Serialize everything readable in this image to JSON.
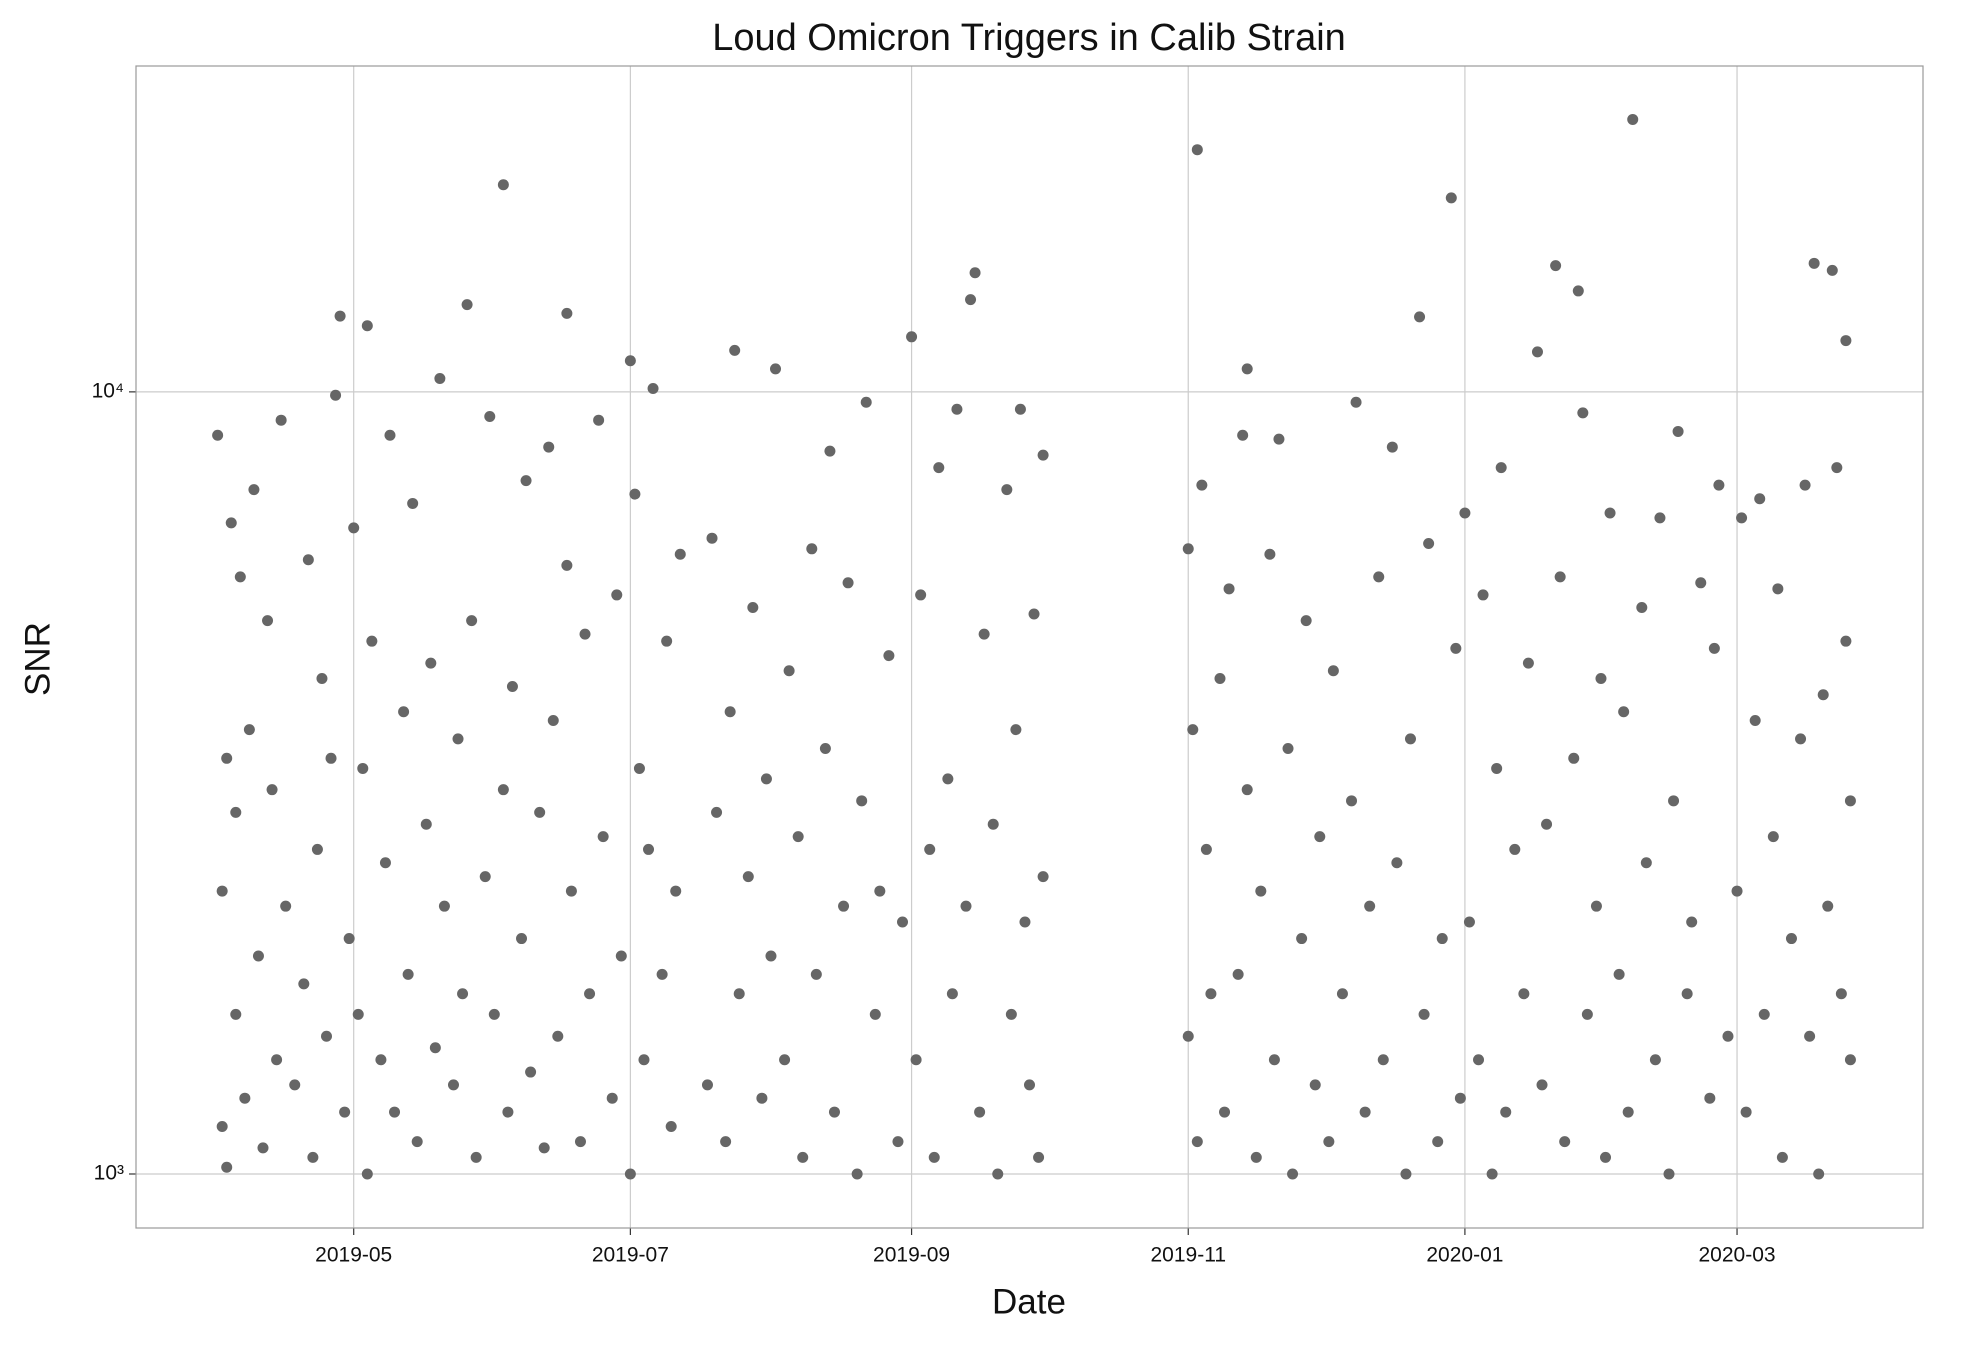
{
  "chart_data": {
    "type": "scatter",
    "title": "Loud Omicron Triggers in Calib Strain",
    "xlabel": "Date",
    "ylabel": "SNR",
    "color": "#666666",
    "log_y": true,
    "grid": true,
    "xlim": [
      "2019-03-14",
      "2020-04-11"
    ],
    "xticks": [
      {
        "value": "2019-05-01",
        "label": "2019-05"
      },
      {
        "value": "2019-07-01",
        "label": "2019-07"
      },
      {
        "value": "2019-09-01",
        "label": "2019-09"
      },
      {
        "value": "2019-11-01",
        "label": "2019-11"
      },
      {
        "value": "2020-01-01",
        "label": "2020-01"
      },
      {
        "value": "2020-03-01",
        "label": "2020-03"
      }
    ],
    "ylim": [
      853,
      26100
    ],
    "yticks": [
      {
        "value": 1000,
        "label": "10³"
      },
      {
        "value": 10000,
        "label": "10⁴"
      }
    ],
    "x": [
      "2019-04-01",
      "2019-04-02",
      "2019-04-02",
      "2019-04-03",
      "2019-04-03",
      "2019-04-04",
      "2019-04-05",
      "2019-04-05",
      "2019-04-06",
      "2019-04-07",
      "2019-04-08",
      "2019-04-09",
      "2019-04-10",
      "2019-04-11",
      "2019-04-12",
      "2019-04-13",
      "2019-04-14",
      "2019-04-15",
      "2019-04-16",
      "2019-04-18",
      "2019-04-20",
      "2019-04-21",
      "2019-04-22",
      "2019-04-23",
      "2019-04-24",
      "2019-04-25",
      "2019-04-26",
      "2019-04-27",
      "2019-04-29",
      "2019-04-30",
      "2019-05-01",
      "2019-05-02",
      "2019-05-03",
      "2019-05-04",
      "2019-05-05",
      "2019-05-07",
      "2019-05-08",
      "2019-05-09",
      "2019-05-10",
      "2019-05-12",
      "2019-05-13",
      "2019-05-14",
      "2019-05-15",
      "2019-05-17",
      "2019-05-18",
      "2019-05-19",
      "2019-05-20",
      "2019-05-21",
      "2019-05-23",
      "2019-05-24",
      "2019-05-25",
      "2019-05-27",
      "2019-05-28",
      "2019-05-30",
      "2019-05-31",
      "2019-06-01",
      "2019-06-03",
      "2019-06-04",
      "2019-06-05",
      "2019-06-07",
      "2019-06-08",
      "2019-06-09",
      "2019-06-11",
      "2019-06-12",
      "2019-06-13",
      "2019-06-14",
      "2019-06-15",
      "2019-06-17",
      "2019-06-18",
      "2019-06-20",
      "2019-06-21",
      "2019-06-22",
      "2019-06-24",
      "2019-06-25",
      "2019-06-27",
      "2019-06-28",
      "2019-06-29",
      "2019-07-01",
      "2019-07-02",
      "2019-07-03",
      "2019-07-04",
      "2019-07-05",
      "2019-07-06",
      "2019-07-08",
      "2019-07-09",
      "2019-07-10",
      "2019-07-11",
      "2019-07-12",
      "2019-07-18",
      "2019-07-19",
      "2019-07-20",
      "2019-07-22",
      "2019-07-23",
      "2019-07-24",
      "2019-07-25",
      "2019-07-27",
      "2019-07-28",
      "2019-07-30",
      "2019-07-31",
      "2019-08-01",
      "2019-08-02",
      "2019-08-04",
      "2019-08-05",
      "2019-08-07",
      "2019-08-08",
      "2019-08-10",
      "2019-08-11",
      "2019-08-13",
      "2019-08-14",
      "2019-08-15",
      "2019-08-17",
      "2019-08-18",
      "2019-08-20",
      "2019-08-21",
      "2019-08-22",
      "2019-08-24",
      "2019-08-25",
      "2019-08-27",
      "2019-08-29",
      "2019-08-30",
      "2019-09-02",
      "2019-09-03",
      "2019-09-05",
      "2019-09-06",
      "2019-09-07",
      "2019-09-09",
      "2019-09-10",
      "2019-09-11",
      "2019-09-13",
      "2019-09-16",
      "2019-09-17",
      "2019-09-19",
      "2019-09-20",
      "2019-09-22",
      "2019-09-23",
      "2019-09-24",
      "2019-09-25",
      "2019-09-26",
      "2019-09-27",
      "2019-09-28",
      "2019-09-29",
      "2019-09-30",
      "2019-09-30",
      "2019-11-01",
      "2019-11-01",
      "2019-11-02",
      "2019-11-03",
      "2019-11-04",
      "2019-11-05",
      "2019-11-06",
      "2019-11-08",
      "2019-11-09",
      "2019-11-10",
      "2019-11-12",
      "2019-11-13",
      "2019-11-14",
      "2019-11-16",
      "2019-11-17",
      "2019-11-19",
      "2019-11-20",
      "2019-11-21",
      "2019-11-23",
      "2019-11-24",
      "2019-11-26",
      "2019-11-27",
      "2019-11-29",
      "2019-11-30",
      "2019-12-02",
      "2019-12-03",
      "2019-12-05",
      "2019-12-07",
      "2019-12-08",
      "2019-12-10",
      "2019-12-11",
      "2019-12-13",
      "2019-12-14",
      "2019-12-16",
      "2019-12-17",
      "2019-12-19",
      "2019-12-20",
      "2019-12-23",
      "2019-12-24",
      "2019-12-26",
      "2019-12-27",
      "2019-12-30",
      "2019-12-31",
      "2020-01-01",
      "2020-01-02",
      "2020-01-04",
      "2020-01-05",
      "2020-01-07",
      "2020-01-08",
      "2020-01-09",
      "2020-01-10",
      "2020-01-12",
      "2020-01-14",
      "2020-01-15",
      "2020-01-18",
      "2020-01-19",
      "2020-01-22",
      "2020-01-23",
      "2020-01-25",
      "2020-01-27",
      "2020-01-28",
      "2020-01-30",
      "2020-01-31",
      "2020-02-01",
      "2020-02-02",
      "2020-02-04",
      "2020-02-05",
      "2020-02-06",
      "2020-02-09",
      "2020-02-10",
      "2020-02-12",
      "2020-02-13",
      "2020-02-15",
      "2020-02-16",
      "2020-02-17",
      "2020-02-19",
      "2020-02-20",
      "2020-02-22",
      "2020-02-24",
      "2020-02-25",
      "2020-02-26",
      "2020-02-28",
      "2020-03-01",
      "2020-03-02",
      "2020-03-03",
      "2020-03-05",
      "2020-03-06",
      "2020-03-07",
      "2020-03-09",
      "2020-03-10",
      "2020-03-11",
      "2020-03-13",
      "2020-03-15",
      "2020-03-16",
      "2020-03-17",
      "2020-03-19",
      "2020-03-20",
      "2020-03-21",
      "2020-03-23",
      "2020-03-24",
      "2020-03-25",
      "2020-03-26",
      "2020-03-26",
      "2019-06-03",
      "2019-11-03",
      "2020-02-07",
      "2019-12-29",
      "2019-09-15",
      "2020-01-21",
      "2020-03-18",
      "2020-03-22",
      "2019-04-28",
      "2019-05-04",
      "2019-05-26",
      "2019-06-17",
      "2019-09-01",
      "2020-03-25",
      "2019-12-22",
      "2019-11-14",
      "2020-01-17",
      "2019-07-01",
      "2020-01-26",
      "2019-09-14"
    ],
    "values": [
      8800,
      1150,
      2300,
      3400,
      1020,
      6800,
      1600,
      2900,
      5800,
      1250,
      3700,
      7500,
      1900,
      1080,
      5100,
      3100,
      1400,
      9200,
      2200,
      1300,
      1750,
      6100,
      1050,
      2600,
      4300,
      1500,
      3400,
      9900,
      1200,
      2000,
      6700,
      1600,
      3300,
      1000,
      4800,
      1400,
      2500,
      8800,
      1200,
      3900,
      1800,
      7200,
      1100,
      2800,
      4500,
      1450,
      10400,
      2200,
      1300,
      3600,
      1700,
      5100,
      1050,
      2400,
      9300,
      1600,
      3100,
      1200,
      4200,
      2000,
      7700,
      1350,
      2900,
      1080,
      8500,
      3800,
      1500,
      6000,
      2300,
      1100,
      4900,
      1700,
      9200,
      2700,
      1250,
      5500,
      1900,
      1000,
      7400,
      3300,
      1400,
      2600,
      10100,
      1800,
      4800,
      1150,
      2300,
      6200,
      1300,
      6500,
      2900,
      1100,
      3900,
      11300,
      1700,
      2400,
      5300,
      1250,
      3200,
      1900,
      10700,
      1400,
      4400,
      2700,
      1050,
      6300,
      1800,
      3500,
      8400,
      1200,
      2200,
      5700,
      1000,
      3000,
      9700,
      1600,
      2300,
      4600,
      1100,
      2100,
      1400,
      5500,
      2600,
      1050,
      8000,
      3200,
      1700,
      9500,
      2200,
      1200,
      4900,
      2800,
      1000,
      7500,
      1600,
      3700,
      9500,
      2100,
      1300,
      5200,
      1050,
      8300,
      2400,
      1500,
      6300,
      3700,
      1100,
      7600,
      2600,
      1700,
      4300,
      1200,
      5600,
      1800,
      8800,
      3100,
      1050,
      2300,
      6200,
      1400,
      8700,
      3500,
      1000,
      2000,
      5100,
      1300,
      2700,
      1100,
      4400,
      1700,
      3000,
      9700,
      1200,
      2200,
      5800,
      1400,
      8500,
      2500,
      1000,
      3600,
      1600,
      6400,
      1100,
      2000,
      4700,
      1250,
      7000,
      2100,
      1400,
      5500,
      1000,
      3300,
      8000,
      1200,
      2600,
      1700,
      4500,
      1300,
      2800,
      5800,
      1100,
      3400,
      9400,
      1600,
      2200,
      4300,
      1050,
      7000,
      1800,
      3900,
      1200,
      5300,
      2500,
      1400,
      6900,
      1000,
      3000,
      8900,
      1700,
      2100,
      5700,
      1250,
      4700,
      7600,
      1500,
      2300,
      6900,
      1200,
      3800,
      7300,
      1600,
      2700,
      5600,
      1050,
      2000,
      3600,
      7600,
      1500,
      1000,
      4100,
      2200,
      8000,
      1700,
      4800,
      3000,
      1400,
      18400,
      20400,
      22300,
      17700,
      14200,
      14500,
      14600,
      14300,
      12500,
      12150,
      12930,
      12600,
      11760,
      11630,
      12470,
      10700,
      11250,
      10960,
      13460,
      13120
    ]
  }
}
